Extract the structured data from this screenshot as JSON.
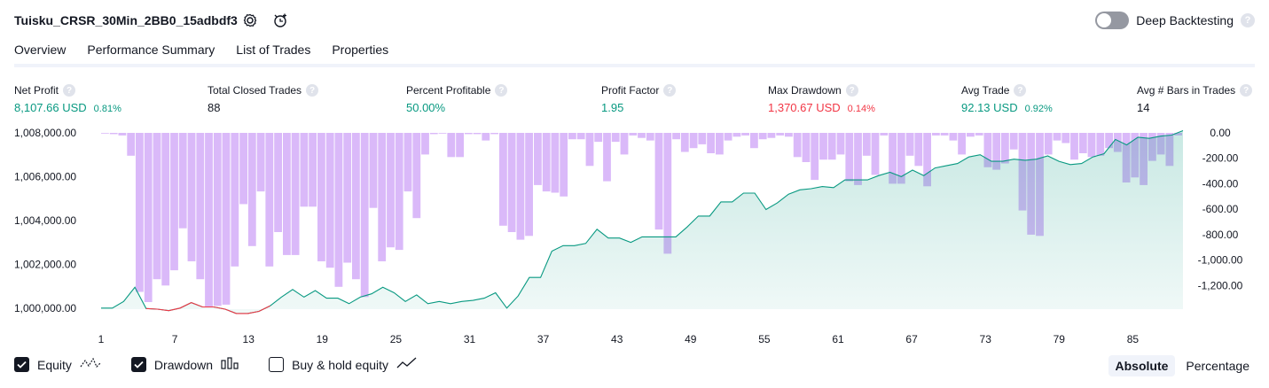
{
  "header": {
    "title": "Tuisku_CRSR_30Min_2BB0_15adbdf3",
    "deep_backtesting_label": "Deep Backtesting",
    "help_glyph": "?"
  },
  "tabs": [
    {
      "label": "Overview",
      "active": true
    },
    {
      "label": "Performance Summary",
      "active": false
    },
    {
      "label": "List of Trades",
      "active": false
    },
    {
      "label": "Properties",
      "active": false
    }
  ],
  "metrics": [
    {
      "label": "Net Profit",
      "value": "8,107.66 USD",
      "pct": "0.81%",
      "color": "#089981"
    },
    {
      "label": "Total Closed Trades",
      "value": "88",
      "pct": "",
      "color": "#131722"
    },
    {
      "label": "Percent Profitable",
      "value": "50.00%",
      "pct": "",
      "color": "#089981"
    },
    {
      "label": "Profit Factor",
      "value": "1.95",
      "pct": "",
      "color": "#089981"
    },
    {
      "label": "Max Drawdown",
      "value": "1,370.67 USD",
      "pct": "0.14%",
      "color": "#f23645"
    },
    {
      "label": "Avg Trade",
      "value": "92.13 USD",
      "pct": "0.92%",
      "color": "#089981"
    },
    {
      "label": "Avg # Bars in Trades",
      "value": "14",
      "pct": "",
      "color": "#131722"
    }
  ],
  "chart_data": {
    "type": "line",
    "x_ticks": [
      "1",
      "7",
      "13",
      "19",
      "25",
      "31",
      "37",
      "43",
      "49",
      "55",
      "61",
      "67",
      "73",
      "79",
      "85"
    ],
    "y_left_ticks": [
      "1,008,000.00",
      "1,006,000.00",
      "1,004,000.00",
      "1,002,000.00",
      "1,000,000.00"
    ],
    "y_left_values": [
      1008000,
      1006000,
      1004000,
      1002000,
      1000000
    ],
    "y_left_range": [
      999950,
      1008000
    ],
    "y_right_ticks": [
      "0.00",
      "-200.00",
      "-400.00",
      "-600.00",
      "-800.00",
      "-1,000.00",
      "-1,200.00"
    ],
    "y_right_values": [
      0,
      -200,
      -400,
      -600,
      -800,
      -1000,
      -1200
    ],
    "y_right_range": [
      -1330,
      0
    ],
    "series": [
      {
        "name": "Equity",
        "color": "#089981",
        "values": [
          1000000,
          1000000,
          1000300,
          1000950,
          999980,
          999950,
          999880,
          1000000,
          1000250,
          1000050,
          1000050,
          999950,
          999750,
          999750,
          999850,
          1000100,
          1000500,
          1000850,
          1000500,
          1000800,
          1000450,
          1000450,
          1000200,
          1000500,
          1000650,
          1000950,
          1000700,
          1000300,
          1000600,
          1000200,
          1000300,
          1000200,
          1000300,
          1000350,
          1000450,
          1000700,
          1000000,
          1000550,
          1001400,
          1001400,
          1002600,
          1002850,
          1002850,
          1002950,
          1003600,
          1003200,
          1003200,
          1003000,
          1003250,
          1003250,
          1003250,
          1003250,
          1003700,
          1004200,
          1004200,
          1004850,
          1004850,
          1005250,
          1005250,
          1004500,
          1004800,
          1005200,
          1005400,
          1005450,
          1005550,
          1005500,
          1005850,
          1005850,
          1005850,
          1006050,
          1006200,
          1006000,
          1006300,
          1006050,
          1006400,
          1006500,
          1006600,
          1006900,
          1007000,
          1006700,
          1006700,
          1006800,
          1006750,
          1006800,
          1006950,
          1006700,
          1006550,
          1006600,
          1006900,
          1007050,
          1007700,
          1007450,
          1007800,
          1007750,
          1007850,
          1007900,
          1008100
        ],
        "drawdown_values": [
          0,
          -10,
          -20,
          -180,
          -1250,
          -1330,
          -1150,
          -1200,
          -1080,
          -750,
          -1010,
          -1150,
          -1370,
          -1360,
          -1350,
          -1050,
          -560,
          -890,
          -460,
          -1050,
          -780,
          -960,
          -960,
          -580,
          -580,
          -1010,
          -1060,
          -1210,
          -1020,
          -1150,
          -1290,
          -590,
          -1010,
          -900,
          -920,
          -460,
          -670,
          -170,
          -10,
          -5,
          -190,
          -190,
          -10,
          -10,
          -60,
          -10,
          -730,
          -780,
          -840,
          -810,
          -410,
          -460,
          -470,
          -500,
          -50,
          -50,
          -260,
          -70,
          -380,
          -70,
          -170,
          -20,
          -40,
          -60,
          -760,
          -950,
          -50,
          -150,
          -120,
          -90,
          -160,
          -170,
          -60,
          -30,
          -20,
          -120,
          -50,
          -40,
          -20,
          -30,
          -190,
          -230,
          -370,
          -210,
          -210,
          -170,
          -380,
          -410,
          -180,
          -330,
          -20,
          -400,
          -400,
          -180,
          -260,
          -420,
          -20,
          -20,
          -60,
          -170,
          -30,
          -20,
          -270,
          -290,
          -240,
          -130,
          -610,
          -800,
          -810,
          -170,
          -60,
          -80,
          -210,
          -160,
          -190,
          -180,
          -120,
          -150,
          -390,
          -350,
          -410,
          -220,
          -170,
          -260,
          -20
        ]
      },
      {
        "name": "Drawdown",
        "color": "#c9a3f5"
      }
    ]
  },
  "legend": [
    {
      "label": "Equity",
      "checked": true,
      "icon": "equity-line-icon"
    },
    {
      "label": "Drawdown",
      "checked": true,
      "icon": "drawdown-bars-icon"
    },
    {
      "label": "Buy & hold equity",
      "checked": false,
      "icon": "buy-hold-line-icon"
    }
  ],
  "modes": [
    {
      "label": "Absolute",
      "active": true
    },
    {
      "label": "Percentage",
      "active": false
    }
  ]
}
